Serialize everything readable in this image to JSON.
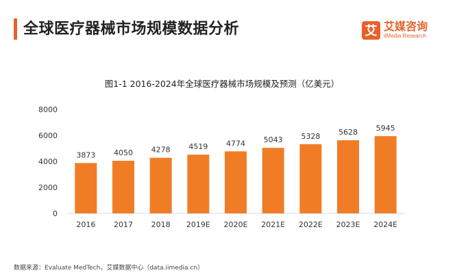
{
  "header": {
    "title": "全球医疗器械市场规模数据分析"
  },
  "brand": {
    "name": "艾媒咨询",
    "sub": "iiMedia Research",
    "logo_glyph": "艾",
    "color": "#e8612c"
  },
  "footer": {
    "source": "数据来源：Evaluate MedTech，艾媒数据中心（data.iimedia.cn）"
  },
  "chart_data": {
    "type": "bar",
    "title": "图1-1 2016-2024年全球医疗器械市场规模及预测（亿美元）",
    "categories": [
      "2016",
      "2017",
      "2018",
      "2019E",
      "2020E",
      "2021E",
      "2022E",
      "2023E",
      "2024E"
    ],
    "values": [
      3873,
      4050,
      4278,
      4519,
      4774,
      5043,
      5328,
      5628,
      5945
    ],
    "ylim": [
      0,
      8000
    ],
    "yticks": [
      0,
      2000,
      4000,
      6000,
      8000
    ],
    "xlabel": "",
    "ylabel": "",
    "bar_color": "#f07d26",
    "grid": false
  }
}
